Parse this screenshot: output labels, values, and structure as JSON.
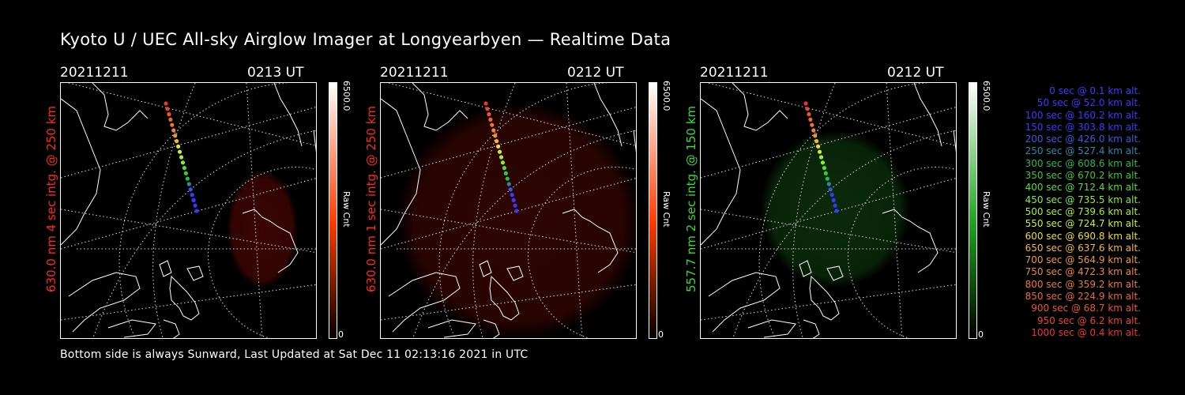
{
  "title": "Kyoto U / UEC All-sky Airglow Imager at Longyearbyen — Realtime Data",
  "footer": "Bottom side is always Sunward, Last Updated at Sat Dec 11 02:13:16 2021 in UTC",
  "panels": [
    {
      "date": "20211211",
      "time": "0213 UT",
      "label": "630.0 nm 4 sec intg. @ 250 km",
      "label_color": "#ff2a1a",
      "colorbar_max": "6500.0",
      "colorbar_min": "0",
      "colorbar_unit": "Raw Cnt",
      "colorbar_top_color": "#ffffff",
      "colorbar_mid_color": "#ff3a00",
      "image_tint": "#3a0503"
    },
    {
      "date": "20211211",
      "time": "0212 UT",
      "label": "630.0 nm 1 sec intg. @ 250 km",
      "label_color": "#ff2a1a",
      "colorbar_max": "6500.0",
      "colorbar_min": "0",
      "colorbar_unit": "Raw Cnt",
      "colorbar_top_color": "#ffffff",
      "colorbar_mid_color": "#ff3a00",
      "image_tint": "#2e0503"
    },
    {
      "date": "20211211",
      "time": "0212 UT",
      "label": "557.7 nm 2 sec intg. @ 150 km",
      "label_color": "#33dd33",
      "colorbar_max": "6500.0",
      "colorbar_min": "0",
      "colorbar_unit": "Raw Cnt",
      "colorbar_top_color": "#ffffff",
      "colorbar_mid_color": "#1fa31f",
      "image_tint": "#0a2a0a"
    }
  ],
  "legend": [
    {
      "text": "0 sec @   0.1 km alt.",
      "color": "#3a3aff"
    },
    {
      "text": "50 sec @  52.0 km alt.",
      "color": "#3a3aff"
    },
    {
      "text": "100 sec @ 160.2 km alt.",
      "color": "#3a3aff"
    },
    {
      "text": "150 sec @ 303.8 km alt.",
      "color": "#3a3aff"
    },
    {
      "text": "200 sec @ 426.0 km alt.",
      "color": "#3a5adf"
    },
    {
      "text": "250 sec @ 527.4 km alt.",
      "color": "#2a8aaa"
    },
    {
      "text": "300 sec @ 608.6 km alt.",
      "color": "#22bb55"
    },
    {
      "text": "350 sec @ 670.2 km alt.",
      "color": "#33cc33"
    },
    {
      "text": "400 sec @ 712.4 km alt.",
      "color": "#55dd33"
    },
    {
      "text": "450 sec @ 735.5 km alt.",
      "color": "#88ee33"
    },
    {
      "text": "500 sec @ 739.6 km alt.",
      "color": "#aaee33"
    },
    {
      "text": "550 sec @ 724.7 km alt.",
      "color": "#ccee33"
    },
    {
      "text": "600 sec @ 690.8 km alt.",
      "color": "#eedd33"
    },
    {
      "text": "650 sec @ 637.6 km alt.",
      "color": "#eebb33"
    },
    {
      "text": "700 sec @ 564.9 km alt.",
      "color": "#ee9933"
    },
    {
      "text": "750 sec @ 472.3 km alt.",
      "color": "#ee8833"
    },
    {
      "text": "800 sec @ 359.2 km alt.",
      "color": "#ee7733"
    },
    {
      "text": "850 sec @ 224.9 km alt.",
      "color": "#ee6633"
    },
    {
      "text": "900 sec @  68.7 km alt.",
      "color": "#ee5533"
    },
    {
      "text": "950 sec @   6.2 km alt.",
      "color": "#ee4433"
    },
    {
      "text": "1000 sec @   0.4 km alt.",
      "color": "#ee3333"
    }
  ]
}
